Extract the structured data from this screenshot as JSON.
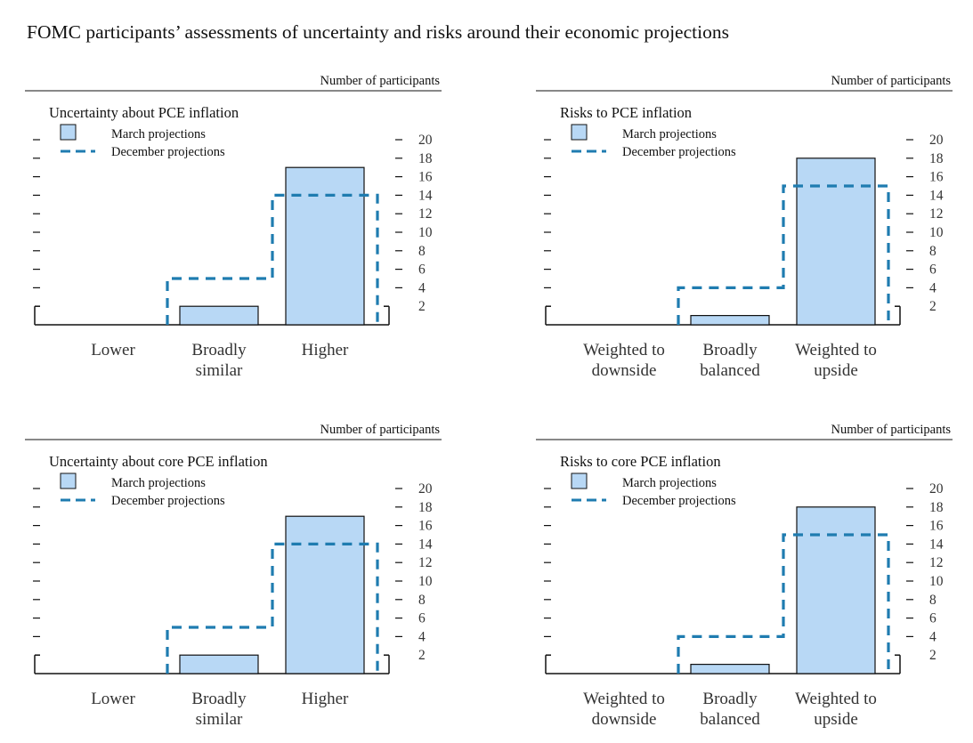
{
  "title": "FOMC participants’ assessments of uncertainty and risks around their economic projections",
  "colors": {
    "bar_fill": "#b8d8f5",
    "bar_stroke": "#111111",
    "dashed": "#1f7cb0",
    "axis": "#111111",
    "tick_label": "#333333"
  },
  "chart_data": [
    {
      "type": "bar",
      "title": "Uncertainty about PCE inflation",
      "ylabel": "Number of participants",
      "categories": [
        "Lower",
        "Broadly similar",
        "Higher"
      ],
      "category_lines": [
        [
          "Lower"
        ],
        [
          "Broadly",
          "similar"
        ],
        [
          "Higher"
        ]
      ],
      "series": [
        {
          "name": "March projections",
          "style": "bar",
          "values": [
            0,
            2,
            17
          ]
        },
        {
          "name": "December projections",
          "style": "dashed-step",
          "values": [
            0,
            5,
            14
          ]
        }
      ],
      "ylim": [
        0,
        20
      ],
      "yticks": [
        2,
        4,
        6,
        8,
        10,
        12,
        14,
        16,
        18,
        20
      ],
      "legend": "top-left"
    },
    {
      "type": "bar",
      "title": "Risks to PCE inflation",
      "ylabel": "Number of participants",
      "categories": [
        "Weighted to downside",
        "Broadly balanced",
        "Weighted to upside"
      ],
      "category_lines": [
        [
          "Weighted to",
          "downside"
        ],
        [
          "Broadly",
          "balanced"
        ],
        [
          "Weighted to",
          "upside"
        ]
      ],
      "series": [
        {
          "name": "March projections",
          "style": "bar",
          "values": [
            0,
            1,
            18
          ]
        },
        {
          "name": "December projections",
          "style": "dashed-step",
          "values": [
            0,
            4,
            15
          ]
        }
      ],
      "ylim": [
        0,
        20
      ],
      "yticks": [
        2,
        4,
        6,
        8,
        10,
        12,
        14,
        16,
        18,
        20
      ],
      "legend": "top-left"
    },
    {
      "type": "bar",
      "title": "Uncertainty about core PCE inflation",
      "ylabel": "Number of participants",
      "categories": [
        "Lower",
        "Broadly similar",
        "Higher"
      ],
      "category_lines": [
        [
          "Lower"
        ],
        [
          "Broadly",
          "similar"
        ],
        [
          "Higher"
        ]
      ],
      "series": [
        {
          "name": "March projections",
          "style": "bar",
          "values": [
            0,
            2,
            17
          ]
        },
        {
          "name": "December projections",
          "style": "dashed-step",
          "values": [
            0,
            5,
            14
          ]
        }
      ],
      "ylim": [
        0,
        20
      ],
      "yticks": [
        2,
        4,
        6,
        8,
        10,
        12,
        14,
        16,
        18,
        20
      ],
      "legend": "top-left"
    },
    {
      "type": "bar",
      "title": "Risks to core PCE inflation",
      "ylabel": "Number of participants",
      "categories": [
        "Weighted to downside",
        "Broadly balanced",
        "Weighted to upside"
      ],
      "category_lines": [
        [
          "Weighted to",
          "downside"
        ],
        [
          "Broadly",
          "balanced"
        ],
        [
          "Weighted to",
          "upside"
        ]
      ],
      "series": [
        {
          "name": "March projections",
          "style": "bar",
          "values": [
            0,
            1,
            18
          ]
        },
        {
          "name": "December projections",
          "style": "dashed-step",
          "values": [
            0,
            4,
            15
          ]
        }
      ],
      "ylim": [
        0,
        20
      ],
      "yticks": [
        2,
        4,
        6,
        8,
        10,
        12,
        14,
        16,
        18,
        20
      ],
      "legend": "top-left"
    }
  ]
}
